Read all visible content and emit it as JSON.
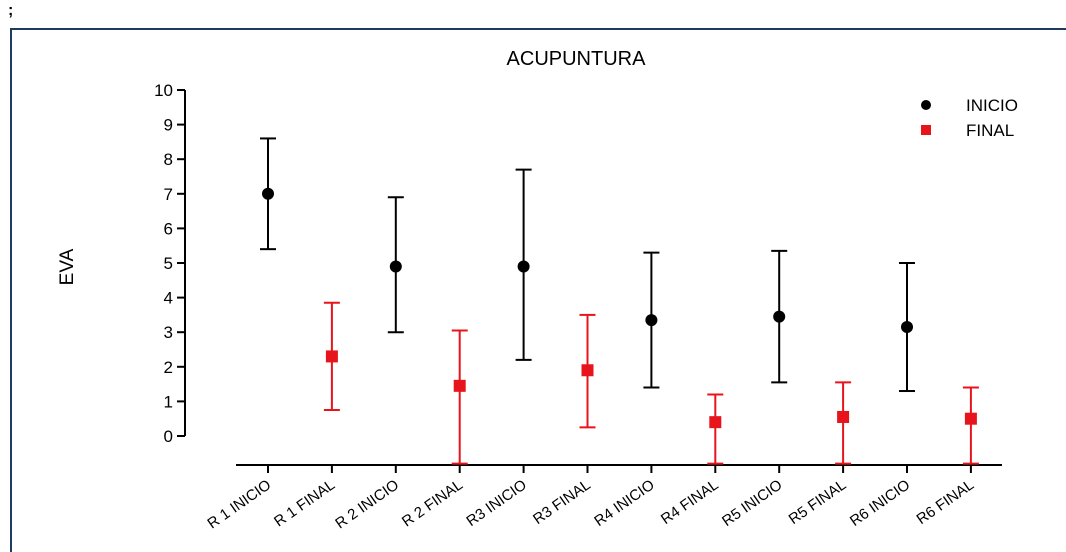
{
  "corner_mark": ";",
  "chart_data": {
    "type": "scatter",
    "title": "ACUPUNTURA",
    "ylabel": "EVA",
    "xlabel": "",
    "ylim": [
      0,
      10
    ],
    "yticks": [
      0,
      1,
      2,
      3,
      4,
      5,
      6,
      7,
      8,
      9,
      10
    ],
    "categories": [
      "R 1 INICIO",
      "R 1 FINAL",
      "R 2 INICIO",
      "R 2 FINAL",
      "R3 INICIO",
      "R3 FINAL",
      "R4 INICIO",
      "R4 FINAL",
      "R5 INICIO",
      "R5 FINAL",
      "R6 INICIO",
      "R6 FINAL"
    ],
    "legend_position": "top-right",
    "series": [
      {
        "name": "INICIO",
        "color": "#000000",
        "marker": "circle",
        "points": [
          {
            "category": "R 1 INICIO",
            "y": 7.0,
            "low": 5.4,
            "high": 8.6
          },
          {
            "category": "R 2 INICIO",
            "y": 4.9,
            "low": 3.0,
            "high": 6.9
          },
          {
            "category": "R3 INICIO",
            "y": 4.9,
            "low": 2.2,
            "high": 7.7
          },
          {
            "category": "R4 INICIO",
            "y": 3.35,
            "low": 1.4,
            "high": 5.3
          },
          {
            "category": "R5 INICIO",
            "y": 3.45,
            "low": 1.55,
            "high": 5.35
          },
          {
            "category": "R6 INICIO",
            "y": 3.15,
            "low": 1.3,
            "high": 5.0
          }
        ]
      },
      {
        "name": "FINAL",
        "color": "#e8141b",
        "marker": "square",
        "points": [
          {
            "category": "R 1 FINAL",
            "y": 2.3,
            "low": 0.75,
            "high": 3.85
          },
          {
            "category": "R 2 FINAL",
            "y": 1.45,
            "low": -0.8,
            "high": 3.05
          },
          {
            "category": "R3 FINAL",
            "y": 1.9,
            "low": 0.25,
            "high": 3.5
          },
          {
            "category": "R4 FINAL",
            "y": 0.4,
            "low": -0.8,
            "high": 1.2
          },
          {
            "category": "R5 FINAL",
            "y": 0.55,
            "low": -0.8,
            "high": 1.55
          },
          {
            "category": "R6 FINAL",
            "y": 0.5,
            "low": -0.8,
            "high": 1.4
          }
        ]
      }
    ]
  }
}
